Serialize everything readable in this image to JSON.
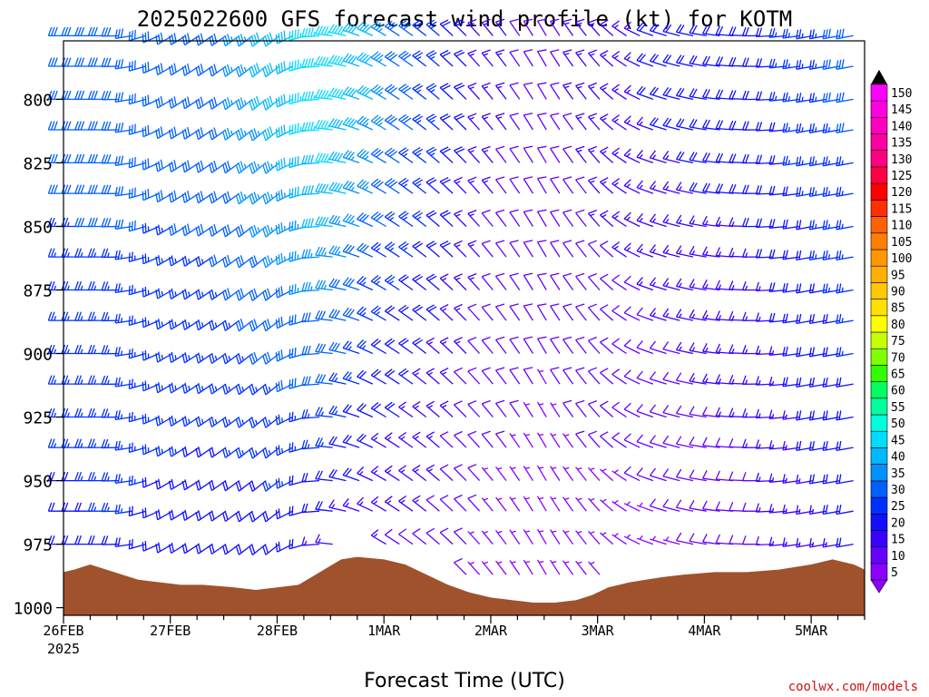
{
  "header": {
    "title": "2025022600 GFS forecast wind profile (kt) for KOTM"
  },
  "footer": {
    "xlabel": "Forecast Time (UTC)",
    "credit": "coolwx.com/models"
  },
  "colors": {
    "terrain": "#a0522d",
    "barb_low": "#8000ff",
    "barb_mid": "#2050ff",
    "barb_high": "#00d8c8"
  },
  "chart_data": {
    "type": "wind-barb time-height profile",
    "title": "2025022600 GFS forecast wind profile (kt) for KOTM",
    "xlabel": "Forecast Time (UTC)",
    "ylabel": "",
    "x_ticks": [
      "26FEB",
      "27FEB",
      "28FEB",
      "1MAR",
      "2MAR",
      "3MAR",
      "4MAR",
      "5MAR"
    ],
    "x_year": "2025",
    "x_range_days": [
      0,
      7.5
    ],
    "y_ticks": [
      800,
      825,
      850,
      875,
      900,
      925,
      950,
      975,
      1000
    ],
    "y_range_hPa": [
      1003,
      777
    ],
    "y_reversed": true,
    "legend": {
      "position": "right",
      "levels": [
        5,
        10,
        15,
        20,
        25,
        30,
        35,
        40,
        45,
        50,
        55,
        60,
        65,
        70,
        75,
        80,
        85,
        90,
        95,
        100,
        105,
        110,
        115,
        120,
        125,
        130,
        135,
        140,
        145,
        150
      ],
      "colors": [
        "#8c00ff",
        "#6600ff",
        "#3a00ff",
        "#1010ff",
        "#0030ff",
        "#0060ff",
        "#0090ff",
        "#00b8ff",
        "#00dcff",
        "#00ffdc",
        "#00ffa0",
        "#00ff60",
        "#30ff00",
        "#80ff00",
        "#c8ff00",
        "#ffff00",
        "#ffe000",
        "#ffc800",
        "#ffb000",
        "#ff9800",
        "#ff8000",
        "#ff6000",
        "#ff3000",
        "#ff0000",
        "#ff0040",
        "#ff0080",
        "#ff00a0",
        "#ff00c0",
        "#ff00e0",
        "#ff00ff"
      ]
    },
    "wind_profile": {
      "pressure_levels_hPa": [
        775,
        787,
        800,
        812,
        825,
        837,
        850,
        862,
        875,
        887,
        900,
        912,
        925,
        937,
        950,
        962,
        975,
        987,
        1000
      ],
      "time_keys_days": [
        0,
        0.5,
        1,
        1.5,
        2,
        2.5,
        3,
        3.5,
        4,
        4.5,
        5,
        5.5,
        6,
        6.5,
        7,
        7.5
      ],
      "direction_deg": [
        270,
        270,
        240,
        235,
        230,
        275,
        300,
        310,
        320,
        330,
        320,
        290,
        280,
        270,
        260,
        260
      ],
      "speed_kt_at_800hPa": [
        30,
        30,
        30,
        32,
        40,
        48,
        35,
        25,
        15,
        10,
        15,
        18,
        20,
        20,
        25,
        30
      ],
      "speed_kt_near_surface": [
        20,
        22,
        20,
        18,
        18,
        15,
        12,
        10,
        5,
        5,
        5,
        5,
        8,
        10,
        15,
        18
      ]
    },
    "terrain_surface_hPa": [
      [
        0.0,
        986
      ],
      [
        0.1,
        985
      ],
      [
        0.25,
        983
      ],
      [
        0.4,
        985
      ],
      [
        0.55,
        987
      ],
      [
        0.7,
        989
      ],
      [
        0.9,
        990
      ],
      [
        1.1,
        991
      ],
      [
        1.3,
        991
      ],
      [
        1.6,
        992
      ],
      [
        1.8,
        993
      ],
      [
        2.0,
        992
      ],
      [
        2.2,
        991
      ],
      [
        2.4,
        986
      ],
      [
        2.6,
        981
      ],
      [
        2.75,
        980
      ],
      [
        3.0,
        981
      ],
      [
        3.2,
        983
      ],
      [
        3.4,
        987
      ],
      [
        3.6,
        991
      ],
      [
        3.8,
        994
      ],
      [
        4.0,
        996
      ],
      [
        4.2,
        997
      ],
      [
        4.4,
        998
      ],
      [
        4.6,
        998
      ],
      [
        4.8,
        997
      ],
      [
        4.95,
        995
      ],
      [
        5.1,
        992
      ],
      [
        5.3,
        990
      ],
      [
        5.6,
        988
      ],
      [
        5.8,
        987
      ],
      [
        6.1,
        986
      ],
      [
        6.4,
        986
      ],
      [
        6.7,
        985
      ],
      [
        7.0,
        983
      ],
      [
        7.2,
        981
      ],
      [
        7.4,
        983
      ],
      [
        7.5,
        985
      ]
    ]
  }
}
